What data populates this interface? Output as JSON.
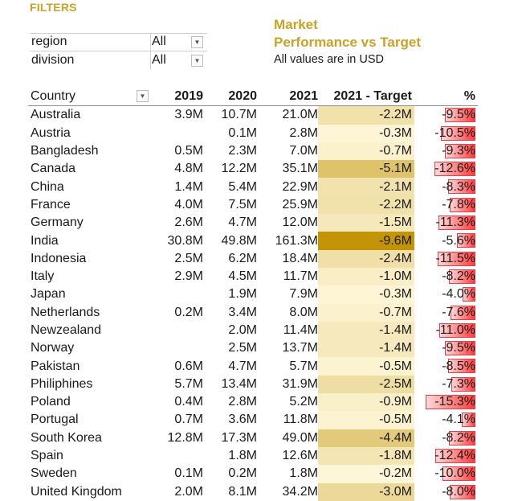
{
  "filters": {
    "heading": "FILTERS",
    "region": {
      "label": "region",
      "value": "All"
    },
    "division": {
      "label": "division",
      "value": "All"
    }
  },
  "header": {
    "title": "Market\nPerformance vs Target",
    "subtitle": "All values are in USD"
  },
  "table": {
    "columns": [
      "Country",
      "2019",
      "2020",
      "2021",
      "2021 - Target",
      "%"
    ],
    "rows": [
      {
        "country": "Australia",
        "y2019": "3.9M",
        "y2020": "10.7M",
        "y2021": "21.0M",
        "target": "-2.2M",
        "target_val": -2.2,
        "pct": "-9.5%",
        "pct_val": -9.5
      },
      {
        "country": "Austria",
        "y2019": "",
        "y2020": "0.1M",
        "y2021": "2.8M",
        "target": "-0.3M",
        "target_val": -0.3,
        "pct": "-10.5%",
        "pct_val": -10.5
      },
      {
        "country": "Bangladesh",
        "y2019": "0.5M",
        "y2020": "2.3M",
        "y2021": "7.0M",
        "target": "-0.7M",
        "target_val": -0.7,
        "pct": "-9.3%",
        "pct_val": -9.3
      },
      {
        "country": "Canada",
        "y2019": "4.8M",
        "y2020": "12.2M",
        "y2021": "35.1M",
        "target": "-5.1M",
        "target_val": -5.1,
        "pct": "-12.6%",
        "pct_val": -12.6
      },
      {
        "country": "China",
        "y2019": "1.4M",
        "y2020": "5.4M",
        "y2021": "22.9M",
        "target": "-2.1M",
        "target_val": -2.1,
        "pct": "-8.3%",
        "pct_val": -8.3
      },
      {
        "country": "France",
        "y2019": "4.0M",
        "y2020": "7.5M",
        "y2021": "25.9M",
        "target": "-2.2M",
        "target_val": -2.2,
        "pct": "-7.8%",
        "pct_val": -7.8
      },
      {
        "country": "Germany",
        "y2019": "2.6M",
        "y2020": "4.7M",
        "y2021": "12.0M",
        "target": "-1.5M",
        "target_val": -1.5,
        "pct": "-11.3%",
        "pct_val": -11.3
      },
      {
        "country": "India",
        "y2019": "30.8M",
        "y2020": "49.8M",
        "y2021": "161.3M",
        "target": "-9.6M",
        "target_val": -9.6,
        "pct": "-5.6%",
        "pct_val": -5.6
      },
      {
        "country": "Indonesia",
        "y2019": "2.5M",
        "y2020": "6.2M",
        "y2021": "18.4M",
        "target": "-2.4M",
        "target_val": -2.4,
        "pct": "-11.5%",
        "pct_val": -11.5
      },
      {
        "country": "Italy",
        "y2019": "2.9M",
        "y2020": "4.5M",
        "y2021": "11.7M",
        "target": "-1.0M",
        "target_val": -1.0,
        "pct": "-8.2%",
        "pct_val": -8.2
      },
      {
        "country": "Japan",
        "y2019": "",
        "y2020": "1.9M",
        "y2021": "7.9M",
        "target": "-0.3M",
        "target_val": -0.3,
        "pct": "-4.0%",
        "pct_val": -4.0
      },
      {
        "country": "Netherlands",
        "y2019": "0.2M",
        "y2020": "3.4M",
        "y2021": "8.0M",
        "target": "-0.7M",
        "target_val": -0.7,
        "pct": "-7.6%",
        "pct_val": -7.6
      },
      {
        "country": "Newzealand",
        "y2019": "",
        "y2020": "2.0M",
        "y2021": "11.4M",
        "target": "-1.4M",
        "target_val": -1.4,
        "pct": "-11.0%",
        "pct_val": -11.0
      },
      {
        "country": "Norway",
        "y2019": "",
        "y2020": "2.5M",
        "y2021": "13.7M",
        "target": "-1.4M",
        "target_val": -1.4,
        "pct": "-9.5%",
        "pct_val": -9.5
      },
      {
        "country": "Pakistan",
        "y2019": "0.6M",
        "y2020": "4.7M",
        "y2021": "5.7M",
        "target": "-0.5M",
        "target_val": -0.5,
        "pct": "-8.5%",
        "pct_val": -8.5
      },
      {
        "country": "Philiphines",
        "y2019": "5.7M",
        "y2020": "13.4M",
        "y2021": "31.9M",
        "target": "-2.5M",
        "target_val": -2.5,
        "pct": "-7.3%",
        "pct_val": -7.3
      },
      {
        "country": "Poland",
        "y2019": "0.4M",
        "y2020": "2.8M",
        "y2021": "5.2M",
        "target": "-0.9M",
        "target_val": -0.9,
        "pct": "-15.3%",
        "pct_val": -15.3
      },
      {
        "country": "Portugal",
        "y2019": "0.7M",
        "y2020": "3.6M",
        "y2021": "11.8M",
        "target": "-0.5M",
        "target_val": -0.5,
        "pct": "-4.1%",
        "pct_val": -4.1
      },
      {
        "country": "South Korea",
        "y2019": "12.8M",
        "y2020": "17.3M",
        "y2021": "49.0M",
        "target": "-4.4M",
        "target_val": -4.4,
        "pct": "-8.2%",
        "pct_val": -8.2
      },
      {
        "country": "Spain",
        "y2019": "",
        "y2020": "1.8M",
        "y2021": "12.6M",
        "target": "-1.8M",
        "target_val": -1.8,
        "pct": "-12.4%",
        "pct_val": -12.4
      },
      {
        "country": "Sweden",
        "y2019": "0.1M",
        "y2020": "0.2M",
        "y2021": "1.8M",
        "target": "-0.2M",
        "target_val": -0.2,
        "pct": "-10.0%",
        "pct_val": -10.0
      },
      {
        "country": "United Kingdom",
        "y2019": "2.0M",
        "y2020": "8.1M",
        "y2021": "34.2M",
        "target": "-3.0M",
        "target_val": -3.0,
        "pct": "-8.0%",
        "pct_val": -8.0
      }
    ]
  },
  "colors": {
    "accent": "#c9a227",
    "heat_light": "#fff8dc",
    "heat_dark": "#c29406",
    "bar_red": "#ff3b3b"
  }
}
